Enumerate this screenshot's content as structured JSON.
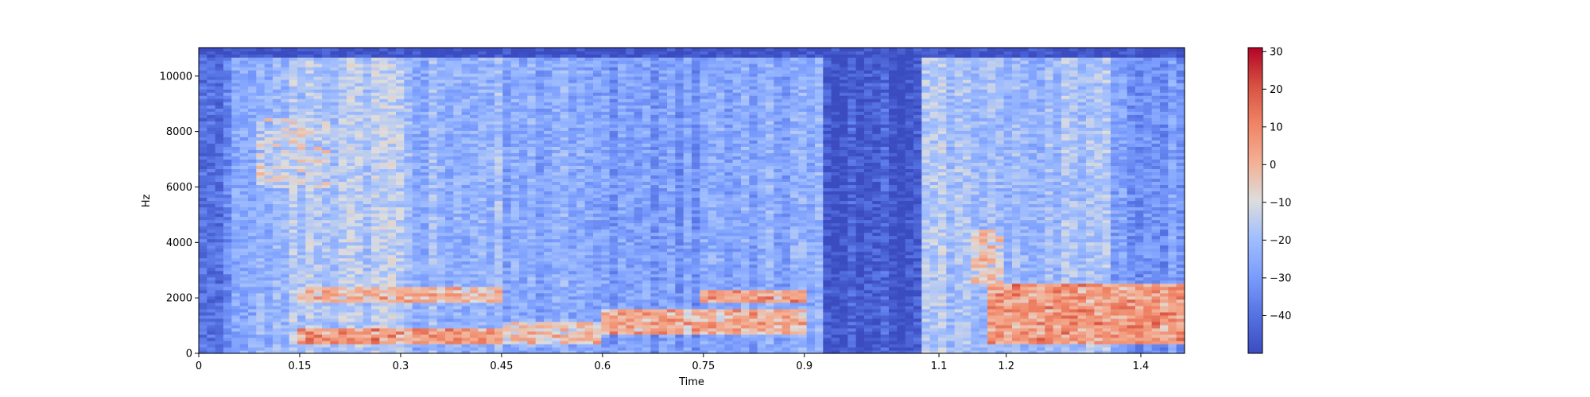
{
  "chart_data": {
    "type": "heatmap",
    "title": "",
    "xlabel": "Time",
    "ylabel": "Hz",
    "xlim": [
      0,
      1.465
    ],
    "ylim": [
      0,
      11025
    ],
    "x_ticks": [
      0,
      0.15,
      0.3,
      0.45,
      0.6,
      0.75,
      0.9,
      1.1,
      1.2,
      1.4
    ],
    "x_tick_labels": [
      "0",
      "0.15",
      "0.3",
      "0.45",
      "0.6",
      "0.75",
      "0.9",
      "1.1",
      "1.2",
      "1.4"
    ],
    "y_ticks": [
      0,
      2000,
      4000,
      6000,
      8000,
      10000
    ],
    "y_tick_labels": [
      "0",
      "2000",
      "4000",
      "6000",
      "8000",
      "10000"
    ],
    "colorbar": {
      "cmap": "coolwarm",
      "vmin": -50,
      "vmax": 31,
      "ticks": [
        -40,
        -30,
        -20,
        -10,
        0,
        10,
        20,
        30
      ],
      "tick_labels": [
        "−40",
        "−30",
        "−20",
        "−10",
        "0",
        "10",
        "20",
        "30"
      ]
    },
    "grid": false,
    "time_segments": [
      {
        "t": [
          0.0,
          0.05
        ],
        "level": -38
      },
      {
        "t": [
          0.05,
          0.14
        ],
        "level": -22
      },
      {
        "t": [
          0.14,
          0.3
        ],
        "level": -17
      },
      {
        "t": [
          0.3,
          0.45
        ],
        "level": -22
      },
      {
        "t": [
          0.45,
          0.6
        ],
        "level": -26
      },
      {
        "t": [
          0.6,
          0.75
        ],
        "level": -30
      },
      {
        "t": [
          0.75,
          0.93
        ],
        "level": -26
      },
      {
        "t": [
          0.93,
          1.02
        ],
        "level": -46
      },
      {
        "t": [
          1.02,
          1.08
        ],
        "level": -49
      },
      {
        "t": [
          1.08,
          1.17
        ],
        "level": -18
      },
      {
        "t": [
          1.17,
          1.35
        ],
        "level": -20
      },
      {
        "t": [
          1.35,
          1.465
        ],
        "level": -30
      }
    ],
    "formant_bands": [
      {
        "t": [
          0.15,
          0.45
        ],
        "hz": [
          1800,
          2400
        ],
        "level": 8
      },
      {
        "t": [
          0.15,
          0.45
        ],
        "hz": [
          300,
          900
        ],
        "level": 15
      },
      {
        "t": [
          0.45,
          0.6
        ],
        "hz": [
          300,
          1200
        ],
        "level": 5
      },
      {
        "t": [
          0.6,
          0.9
        ],
        "hz": [
          700,
          1600
        ],
        "level": 10
      },
      {
        "t": [
          0.75,
          0.9
        ],
        "hz": [
          1800,
          2300
        ],
        "level": 12
      },
      {
        "t": [
          0.08,
          0.2
        ],
        "hz": [
          6000,
          8500
        ],
        "level": -5
      },
      {
        "t": [
          1.15,
          1.2
        ],
        "hz": [
          2500,
          4500
        ],
        "level": 2
      },
      {
        "t": [
          1.17,
          1.465
        ],
        "hz": [
          300,
          2500
        ],
        "level": 15
      }
    ]
  }
}
